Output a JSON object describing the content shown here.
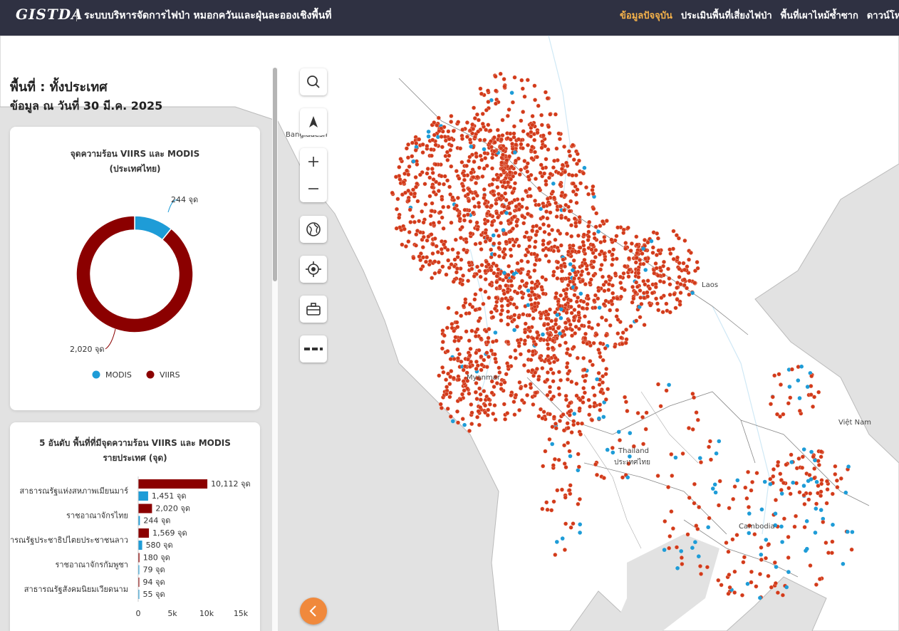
{
  "header": {
    "logo": "GISTDA",
    "title": "ระบบบริหารจัดการไฟป่า หมอกควันและฝุ่นละอองเชิงพื้นที่",
    "nav": [
      {
        "label": "ข้อมูลปัจจุบัน",
        "active": true
      },
      {
        "label": "ประเมินพื้นที่เสี่ยงไฟป่า",
        "active": false
      },
      {
        "label": "พื้นที่เผาไหม้ซ้ำซาก",
        "active": false
      },
      {
        "label": "ดาวน์โหลด",
        "active": false
      }
    ]
  },
  "panel": {
    "area": "พื้นที่ : ทั้งประเทศ",
    "date": "ข้อมูล ณ วันที่ 30 มี.ค. 2025"
  },
  "donut_card": {
    "title_line1": "จุดความร้อน VIIRS และ MODIS",
    "title_line2": "(ประเทศไทย)"
  },
  "bar_card": {
    "title_line1": "5 อันดับ พื้นที่ที่มีจุดความร้อน VIIRS และ MODIS",
    "title_line2": "รายประเทศ (จุด)"
  },
  "map": {
    "labels": {
      "bangladesh": "Bangladesh",
      "laos": "Laos",
      "myanmar": "Myanmar",
      "thailand_en": "Thailand",
      "thailand_th": "ประเทศไทย",
      "vietnam": "Việt Nam",
      "cambodia": "Cambodia"
    },
    "colors": {
      "viirs_dot": "#d23a1a",
      "modis_dot": "#1e9cd7"
    }
  },
  "colors": {
    "viirs": "#8b0000",
    "modis": "#1e9cd7",
    "accent": "#f5b24a",
    "header_bg": "#2f3142"
  },
  "chart_data": [
    {
      "type": "pie",
      "title": "จุดความร้อน VIIRS และ MODIS (ประเทศไทย)",
      "categories": [
        "MODIS",
        "VIIRS"
      ],
      "values": [
        244,
        2020
      ],
      "data_labels": [
        "244 จุด",
        "2,020 จุด"
      ],
      "legend": "bottom"
    },
    {
      "type": "bar",
      "orientation": "horizontal",
      "title": "5 อันดับ พื้นที่ที่มีจุดความร้อน VIIRS และ MODIS รายประเทศ (จุด)",
      "categories": [
        "สาธารณรัฐแห่งสหภาพเมียนมาร์",
        "ราชอาณาจักรไทย",
        "สาธารณรัฐประชาธิปไตยประชาชนลาว",
        "ราชอาณาจักรกัมพูชา",
        "สาธารณรัฐสังคมนิยมเวียดนาม"
      ],
      "series": [
        {
          "name": "VIIRS",
          "values": [
            10112,
            2020,
            1569,
            180,
            94
          ],
          "labels": [
            "10,112 จุด",
            "2,020 จุด",
            "1,569 จุด",
            "180 จุด",
            "94 จุด"
          ]
        },
        {
          "name": "MODIS",
          "values": [
            1451,
            244,
            580,
            79,
            55
          ],
          "labels": [
            "1,451 จุด",
            "244 จุด",
            "580 จุด",
            "79 จุด",
            "55 จุด"
          ]
        }
      ],
      "xticks": [
        "0",
        "5k",
        "10k",
        "15k"
      ],
      "xlim": [
        0,
        15000
      ]
    }
  ]
}
